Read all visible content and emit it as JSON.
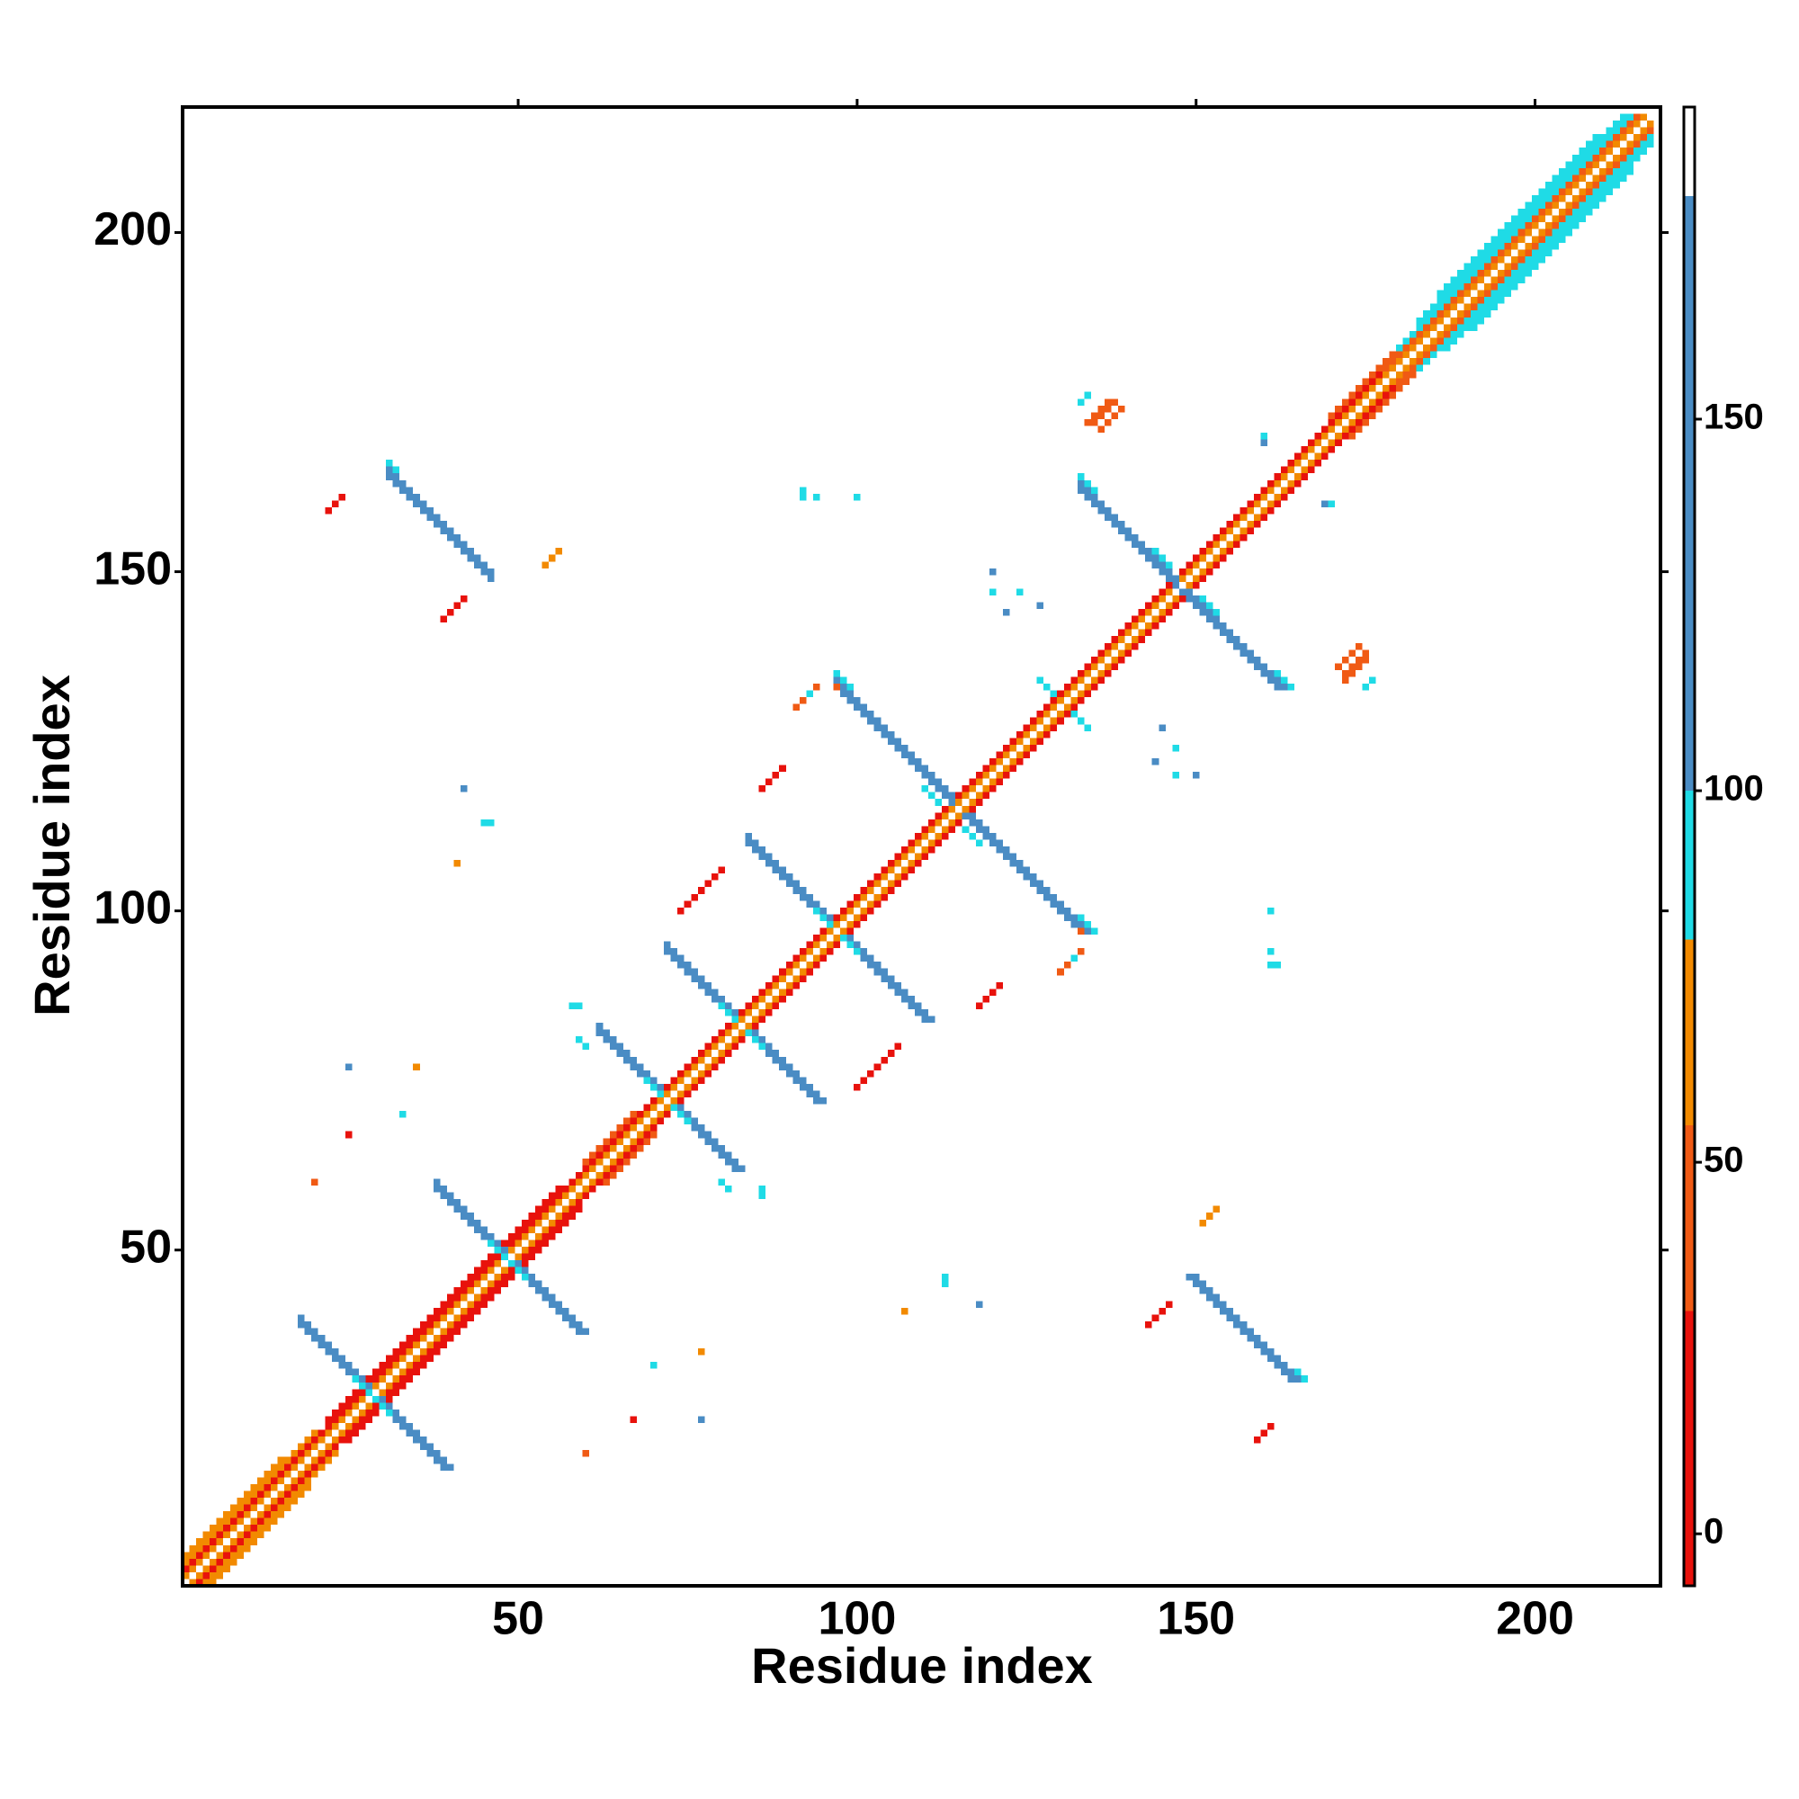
{
  "chart_data": {
    "type": "heatmap",
    "x_label": "Residue index",
    "y_label": "Residue index",
    "xlim": [
      0.5,
      218.5
    ],
    "ylim": [
      0.5,
      218.5
    ],
    "xticks": [
      50,
      100,
      150,
      200
    ],
    "yticks": [
      50,
      100,
      150,
      200
    ],
    "symmetric": true,
    "parallel_runs": [
      [
        1,
        2,
        216,
        60
      ],
      [
        1,
        3,
        177,
        12
      ],
      [
        178,
        180,
        38,
        45
      ],
      [
        1,
        4,
        20,
        60
      ],
      [
        1,
        5,
        15,
        60
      ],
      [
        22,
        25,
        35,
        12
      ],
      [
        60,
        63,
        8,
        45
      ],
      [
        170,
        173,
        10,
        45
      ],
      [
        180,
        183,
        35,
        90
      ],
      [
        183,
        187,
        31,
        90
      ],
      [
        186,
        191,
        24,
        90
      ],
      [
        39,
        143,
        4,
        20
      ],
      [
        74,
        100,
        7,
        25
      ],
      [
        86,
        118,
        4,
        15
      ],
      [
        91,
        130,
        4,
        50
      ],
      [
        22,
        159,
        3,
        15
      ],
      [
        54,
        151,
        3,
        55
      ],
      [
        134,
        172,
        4,
        40
      ],
      [
        135,
        172,
        4,
        30
      ],
      [
        136,
        171,
        4,
        40
      ],
      [
        133,
        175,
        2,
        90
      ]
    ],
    "antiparallel_runs": [
      [
        18,
        39,
        11,
        140
      ],
      [
        18,
        40,
        11,
        140
      ],
      [
        26,
        31,
        3,
        90
      ],
      [
        38,
        59,
        11,
        140
      ],
      [
        38,
        60,
        11,
        140
      ],
      [
        46,
        51,
        3,
        90
      ],
      [
        62,
        82,
        10,
        140
      ],
      [
        62,
        83,
        10,
        140
      ],
      [
        69,
        75,
        3,
        90
      ],
      [
        72,
        94,
        11,
        140
      ],
      [
        72,
        95,
        11,
        140
      ],
      [
        80,
        86,
        3,
        90
      ],
      [
        84,
        110,
        13,
        140
      ],
      [
        84,
        111,
        13,
        140
      ],
      [
        94,
        100,
        3,
        90
      ],
      [
        97,
        133,
        18,
        140
      ],
      [
        97,
        134,
        18,
        140
      ],
      [
        97,
        135,
        3,
        90
      ],
      [
        110,
        118,
        3,
        90
      ],
      [
        133,
        162,
        15,
        140
      ],
      [
        133,
        163,
        15,
        140
      ],
      [
        133,
        164,
        3,
        90
      ],
      [
        144,
        153,
        3,
        90
      ],
      [
        31,
        164,
        16,
        140
      ],
      [
        31,
        165,
        16,
        140
      ],
      [
        31,
        166,
        2,
        90
      ],
      [
        127,
        134,
        3,
        90
      ]
    ],
    "cells": [
      [
        92,
        161,
        90
      ],
      [
        92,
        162,
        90
      ],
      [
        42,
        118,
        140
      ],
      [
        45,
        113,
        90
      ],
      [
        46,
        113,
        90
      ],
      [
        41,
        107,
        60
      ],
      [
        93,
        132,
        90
      ],
      [
        97,
        133,
        45
      ],
      [
        25,
        77,
        140
      ],
      [
        33,
        70,
        90
      ],
      [
        25,
        67,
        12
      ],
      [
        20,
        60,
        45
      ],
      [
        35,
        77,
        60
      ],
      [
        100,
        161,
        90
      ],
      [
        94,
        161,
        90
      ],
      [
        120,
        150,
        140
      ],
      [
        127,
        145,
        140
      ],
      [
        124,
        147,
        90
      ],
      [
        122,
        144,
        140
      ],
      [
        120,
        147,
        90
      ],
      [
        160,
        169,
        140
      ],
      [
        160,
        170,
        90
      ],
      [
        59,
        86,
        90
      ],
      [
        60,
        80,
        90
      ],
      [
        59,
        81,
        90
      ],
      [
        58,
        86,
        90
      ]
    ],
    "colorbar": {
      "bins": [
        -7,
        30,
        55,
        80,
        100,
        180,
        192
      ],
      "colors": [
        "#e8120c",
        "#f05a14",
        "#f28a00",
        "#1fdbe6",
        "#4a8cc4",
        "#ffffff"
      ],
      "ticks": [
        0,
        50,
        100,
        150
      ]
    }
  }
}
